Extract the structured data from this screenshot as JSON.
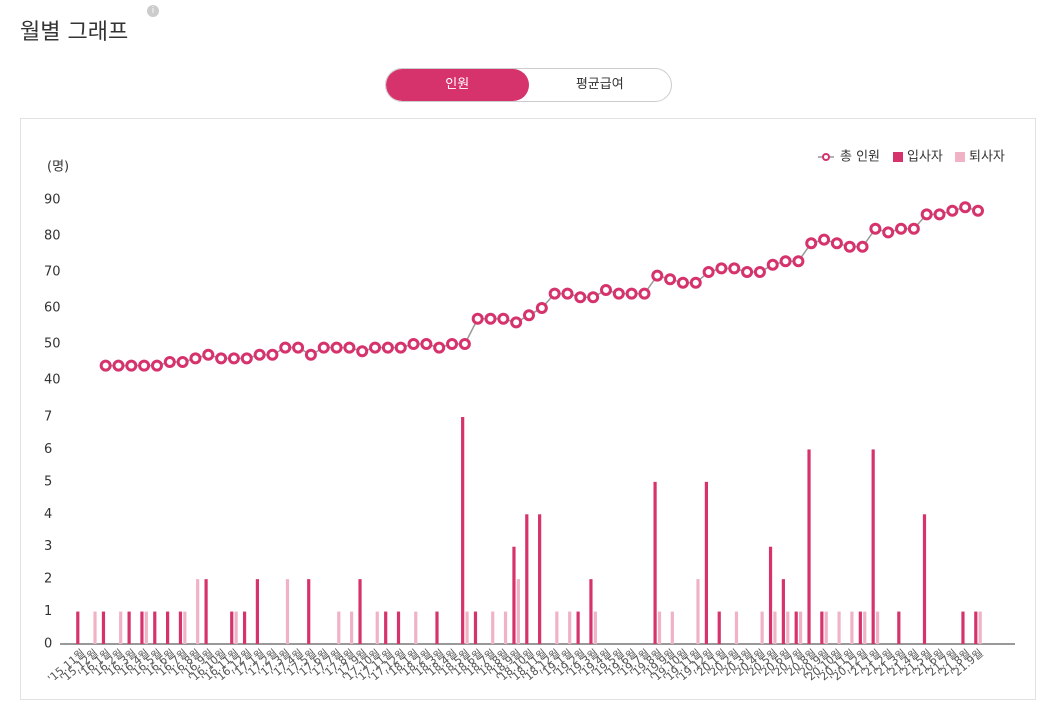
{
  "header": {
    "title": "월별 그래프"
  },
  "tabs": [
    "인원",
    "평균급여"
  ],
  "chart_data": [
    {
      "type": "line",
      "unit_label": "(명)",
      "ylim": [
        40,
        90
      ],
      "yticks": [
        40,
        50,
        60,
        70,
        80,
        90
      ],
      "series": [
        {
          "name": "총 인원",
          "color": "#d6336c",
          "line_color": "#999999",
          "values": [
            null,
            null,
            44,
            44,
            44,
            44,
            44,
            45,
            45,
            46,
            47,
            46,
            46,
            46,
            47,
            47,
            49,
            49,
            47,
            49,
            49,
            49,
            48,
            49,
            49,
            49,
            50,
            50,
            49,
            50,
            50,
            57,
            57,
            57,
            56,
            58,
            60,
            64,
            64,
            63,
            63,
            65,
            64,
            64,
            64,
            69,
            68,
            67,
            67,
            70,
            71,
            71,
            70,
            70,
            72,
            73,
            73,
            78,
            79,
            78,
            77,
            77,
            82,
            81,
            82,
            82,
            86,
            86,
            87,
            88,
            87
          ]
        }
      ]
    },
    {
      "type": "bar",
      "ylim": [
        0,
        7
      ],
      "yticks": [
        0,
        1,
        2,
        3,
        4,
        5,
        6,
        7
      ],
      "categories": [
        "'15.11월",
        "'15.12월",
        "'16.1월",
        "'16.2월",
        "'16.3월",
        "'16.4월",
        "'16.5월",
        "'16.6월",
        "'16.7월",
        "'16.8월",
        "'16.9월",
        "'16.10월",
        "'16.11월",
        "'16.12월",
        "'17.1월",
        "'17.2월",
        "'17.3월",
        "'17.4월",
        "'17.5월",
        "'17.6월",
        "'17.7월",
        "'17.8월",
        "'17.9월",
        "'17.10월",
        "'17.11월",
        "'17.12월",
        "'18.1월",
        "'18.2월",
        "'18.3월",
        "'18.4월",
        "'18.5월",
        "'18.6월",
        "'18.7월",
        "'18.8월",
        "'18.9월",
        "'18.10월",
        "'18.11월",
        "'18.12월",
        "'19.1월",
        "'19.2월",
        "'19.3월",
        "'19.4월",
        "'19.5월",
        "'19.6월",
        "'19.7월",
        "'19.8월",
        "'19.9월",
        "'19.10월",
        "'19.11월",
        "'19.12월",
        "'20.1월",
        "'20.2월",
        "'20.3월",
        "'20.4월",
        "'20.5월",
        "'20.6월",
        "'20.7월",
        "'20.8월",
        "'20.9월",
        "'20.10월",
        "'20.11월",
        "'20.12월",
        "'21.1월",
        "'21.2월",
        "'21.3월",
        "'21.4월",
        "'21.5월",
        "'21.6월",
        "'21.7월",
        "'21.8월",
        "'21.9월"
      ],
      "series": [
        {
          "name": "입사자",
          "color": "#d6336c",
          "values": [
            1,
            0,
            1,
            0,
            1,
            1,
            1,
            1,
            1,
            0,
            2,
            0,
            1,
            1,
            2,
            0,
            0,
            0,
            2,
            0,
            0,
            0,
            2,
            0,
            1,
            1,
            0,
            0,
            1,
            0,
            7,
            1,
            0,
            0,
            3,
            4,
            4,
            0,
            0,
            1,
            2,
            0,
            0,
            0,
            0,
            5,
            0,
            0,
            0,
            5,
            1,
            0,
            0,
            0,
            3,
            2,
            1,
            6,
            1,
            0,
            0,
            1,
            6,
            0,
            1,
            0,
            4,
            0,
            0,
            1,
            1
          ]
        },
        {
          "name": "퇴사자",
          "color": "#f0b3c6",
          "values": [
            0,
            1,
            0,
            1,
            0,
            1,
            0,
            0,
            1,
            2,
            0,
            0,
            1,
            0,
            0,
            0,
            2,
            0,
            0,
            0,
            1,
            1,
            0,
            1,
            0,
            0,
            1,
            0,
            0,
            0,
            1,
            0,
            1,
            1,
            2,
            0,
            0,
            1,
            1,
            0,
            1,
            0,
            0,
            0,
            0,
            1,
            1,
            0,
            2,
            0,
            0,
            1,
            0,
            1,
            1,
            1,
            1,
            0,
            1,
            1,
            1,
            1,
            1,
            0,
            0,
            0,
            0,
            0,
            0,
            0,
            1
          ]
        }
      ]
    }
  ]
}
